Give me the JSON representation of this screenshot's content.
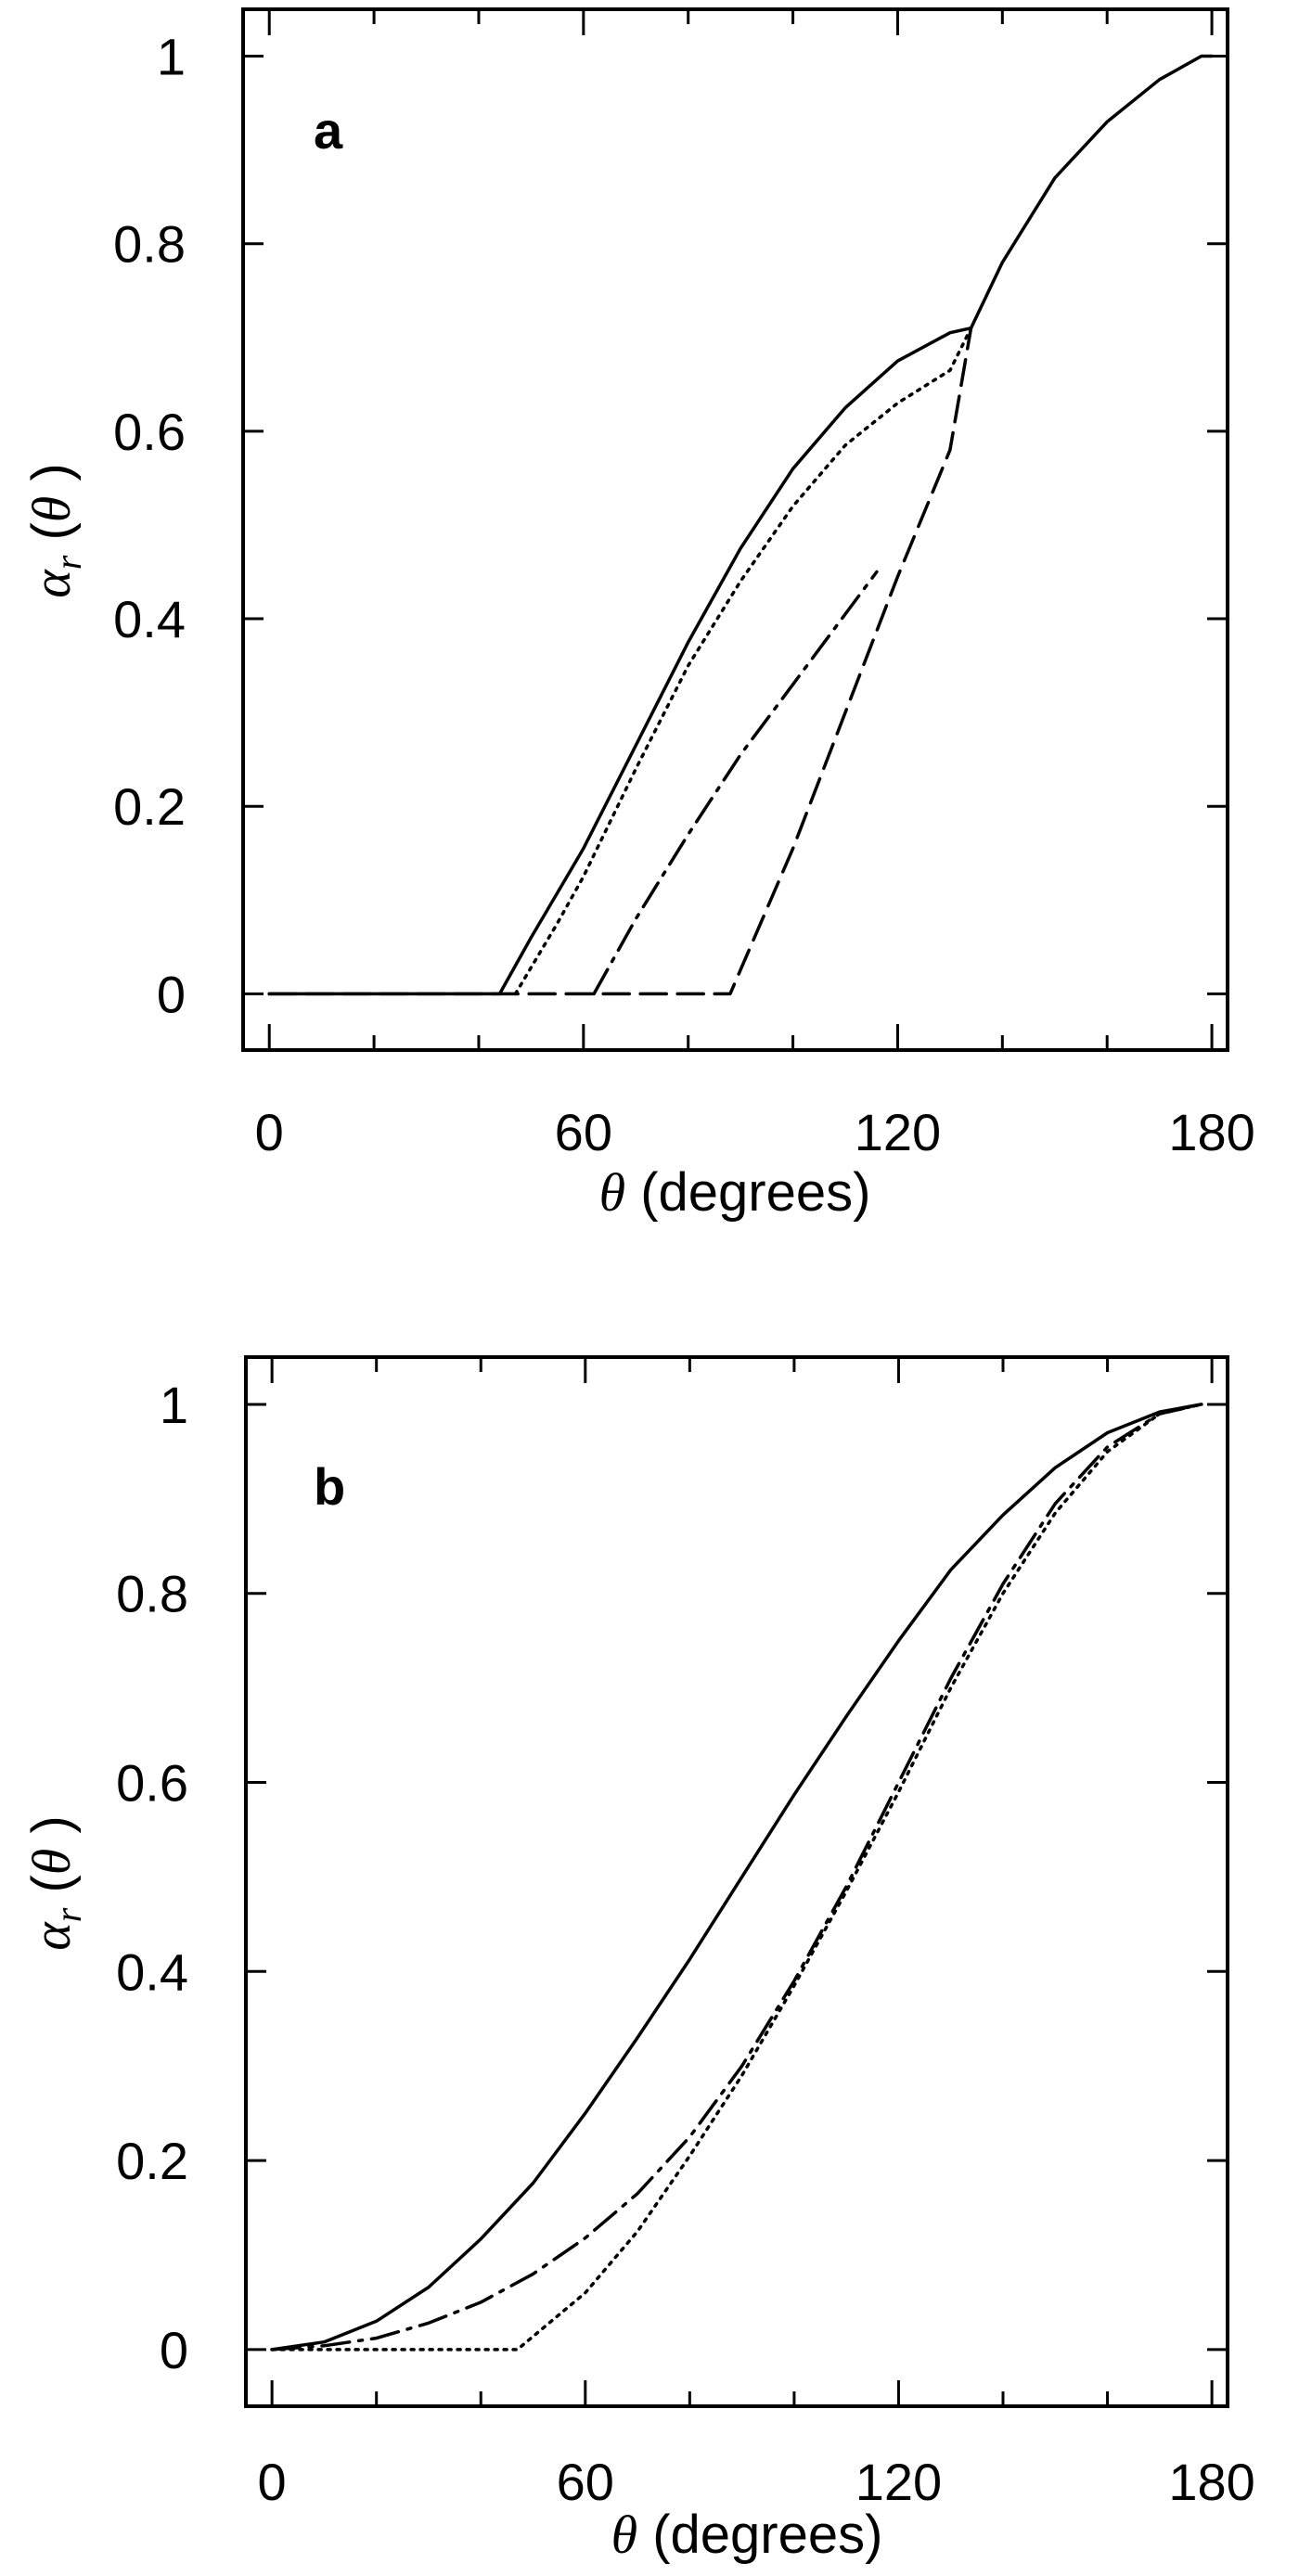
{
  "chart_data": [
    {
      "type": "line",
      "panel_label": "a",
      "xlabel": "θ (degrees)",
      "ylabel": "αr(θ)",
      "xlim": [
        -5,
        183
      ],
      "ylim": [
        -0.06,
        1.05
      ],
      "xticks": [
        0,
        60,
        120,
        180
      ],
      "yticks": [
        0,
        0.2,
        0.4,
        0.6,
        0.8,
        1
      ],
      "ytick_labels": [
        "0",
        "0.2",
        "0.4",
        "0.6",
        "0.8",
        "1"
      ],
      "series": [
        {
          "style": "solid",
          "x": [
            0,
            44,
            50,
            60,
            70,
            80,
            90,
            100,
            110,
            120,
            130,
            134,
            140,
            150,
            160,
            170,
            178,
            180
          ],
          "y": [
            0,
            0,
            0.06,
            0.155,
            0.265,
            0.375,
            0.475,
            0.56,
            0.625,
            0.675,
            0.705,
            0.71,
            0.78,
            0.87,
            0.93,
            0.975,
            1.0,
            1.0
          ]
        },
        {
          "style": "dotted",
          "x": [
            47,
            55,
            60,
            70,
            80,
            90,
            100,
            110,
            120,
            130,
            134
          ],
          "y": [
            0,
            0.075,
            0.125,
            0.24,
            0.35,
            0.44,
            0.52,
            0.585,
            0.63,
            0.665,
            0.71
          ]
        },
        {
          "style": "dashdot",
          "x": [
            62,
            70,
            80,
            90,
            100,
            110,
            116
          ],
          "y": [
            0,
            0.08,
            0.17,
            0.255,
            0.33,
            0.405,
            0.45
          ]
        },
        {
          "style": "dashed",
          "x": [
            0,
            88,
            100,
            110,
            120,
            130,
            134
          ],
          "y": [
            0,
            0,
            0.155,
            0.3,
            0.445,
            0.58,
            0.71
          ]
        }
      ]
    },
    {
      "type": "line",
      "panel_label": "b",
      "xlabel": "θ (degrees)",
      "ylabel": "αr(θ)",
      "xlim": [
        -5,
        183
      ],
      "ylim": [
        -0.06,
        1.05
      ],
      "xticks": [
        0,
        60,
        120,
        180
      ],
      "yticks": [
        0,
        0.2,
        0.4,
        0.6,
        0.8,
        1
      ],
      "ytick_labels": [
        "0",
        "0.2",
        "0.4",
        "0.6",
        "0.8",
        "1"
      ],
      "series": [
        {
          "style": "solid",
          "x": [
            0,
            10,
            20,
            30,
            40,
            50,
            60,
            70,
            80,
            90,
            100,
            110,
            120,
            130,
            140,
            150,
            160,
            170,
            178
          ],
          "y": [
            0,
            0.008,
            0.03,
            0.066,
            0.117,
            0.176,
            0.25,
            0.33,
            0.413,
            0.5,
            0.587,
            0.67,
            0.75,
            0.825,
            0.883,
            0.933,
            0.97,
            0.992,
            1.0
          ]
        },
        {
          "style": "dashdot",
          "x": [
            0,
            10,
            20,
            30,
            40,
            50,
            60,
            70,
            80,
            90,
            100,
            110,
            120,
            130,
            140,
            150,
            160,
            170,
            178
          ],
          "y": [
            0,
            0.004,
            0.012,
            0.028,
            0.05,
            0.08,
            0.118,
            0.165,
            0.225,
            0.3,
            0.39,
            0.49,
            0.6,
            0.71,
            0.81,
            0.895,
            0.955,
            0.99,
            1.0
          ]
        },
        {
          "style": "dotted",
          "x": [
            0,
            47,
            60,
            70,
            80,
            90,
            100,
            110,
            120,
            130,
            140,
            150,
            160,
            170,
            178
          ],
          "y": [
            0,
            0,
            0.06,
            0.125,
            0.205,
            0.29,
            0.385,
            0.485,
            0.59,
            0.7,
            0.8,
            0.885,
            0.95,
            0.99,
            1.0
          ]
        }
      ]
    }
  ]
}
